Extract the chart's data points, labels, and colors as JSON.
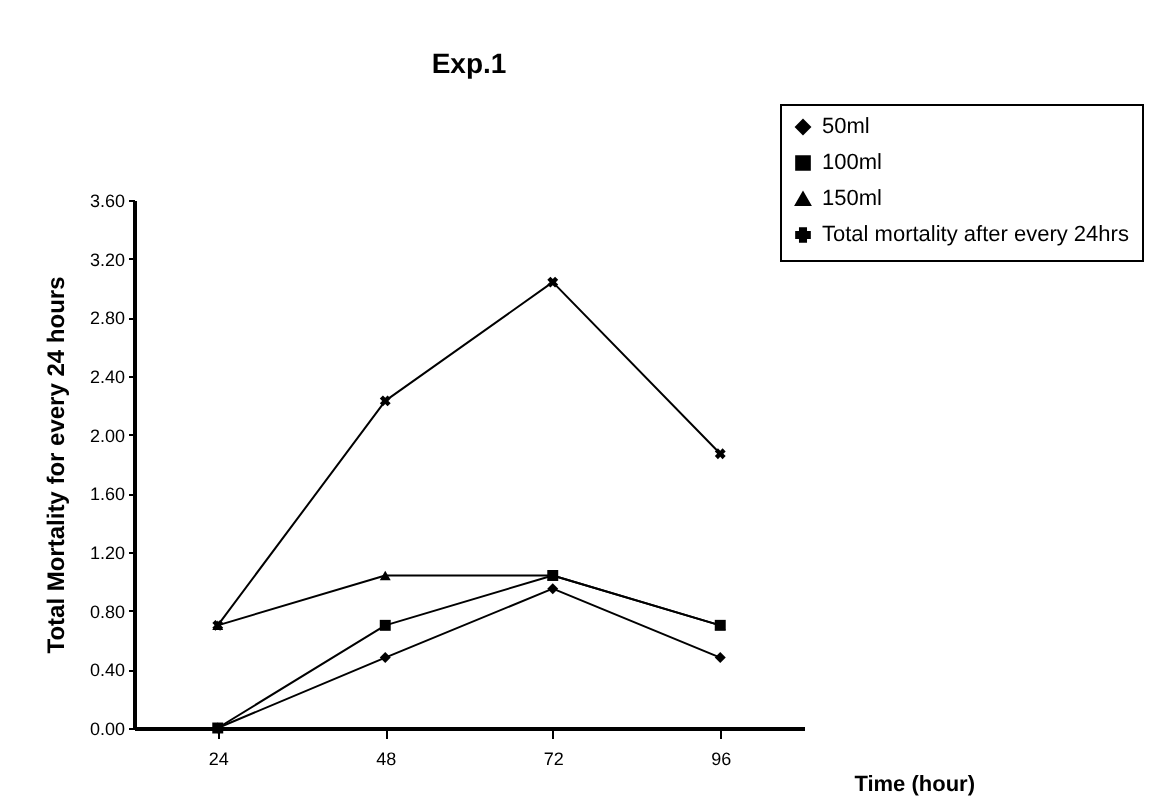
{
  "chart_data": {
    "type": "line",
    "title": "Exp.1",
    "xlabel": "Time (hour)",
    "ylabel": "Total Mortality for every 24 hours",
    "categories": [
      "24",
      "48",
      "72",
      "96"
    ],
    "series": [
      {
        "name": "50ml",
        "color": "#000000",
        "marker": "diamond",
        "values": [
          0,
          0.48,
          0.95,
          0.48
        ]
      },
      {
        "name": "100ml",
        "color": "#000000",
        "marker": "square",
        "values": [
          0,
          0.7,
          1.04,
          0.7
        ]
      },
      {
        "name": "150ml",
        "color": "#000000",
        "marker": "triangle",
        "values": [
          0.7,
          1.04,
          1.04,
          0.7
        ]
      },
      {
        "name": "Total mortality after every 24hrs",
        "color": "#000000",
        "marker": "cross",
        "values": [
          0.7,
          2.23,
          3.04,
          1.87
        ]
      }
    ],
    "ylim": [
      0,
      3.6
    ],
    "yticks": [
      {
        "value": 0,
        "label": "0.00"
      },
      {
        "value": 0.4,
        "label": "0.40"
      },
      {
        "value": 0.8,
        "label": "0.80"
      },
      {
        "value": 1.2,
        "label": "1.20"
      },
      {
        "value": 1.6,
        "label": "1.60"
      },
      {
        "value": 2,
        "label": "2.00"
      },
      {
        "value": 2.4,
        "label": "2.40"
      },
      {
        "value": 2.8,
        "label": "2.80"
      },
      {
        "value": 3.2,
        "label": "3.20"
      },
      {
        "value": 3.6,
        "label": "3.60"
      }
    ],
    "grid": false,
    "legend": "top right",
    "line_style": "solid"
  }
}
